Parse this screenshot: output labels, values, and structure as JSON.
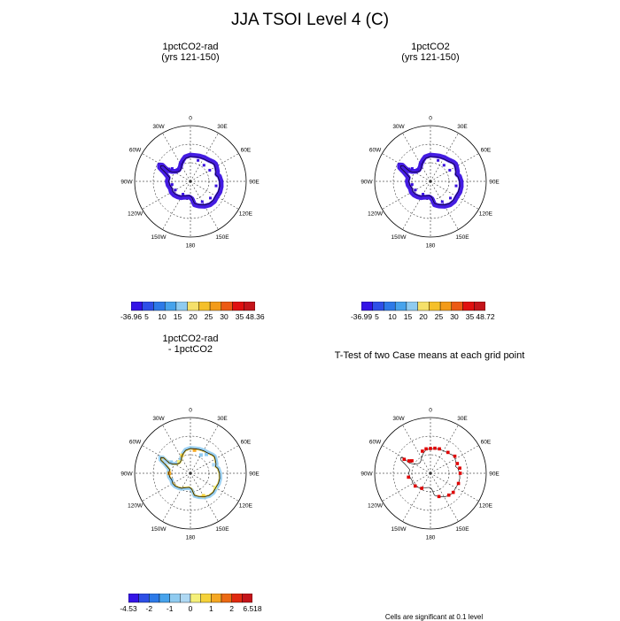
{
  "title": "JJA TSOI Level 4 (C)",
  "panels": [
    {
      "title": "1pctCO2-rad",
      "subtitle": "(yrs 121-150)",
      "labelbar": {
        "labels": [
          "-36.96",
          "5",
          "10",
          "15",
          "20",
          "25",
          "30",
          "35",
          "48.36"
        ]
      }
    },
    {
      "title": "1pctCO2",
      "subtitle": "(yrs 121-150)",
      "labelbar": {
        "labels": [
          "-36.99",
          "5",
          "10",
          "15",
          "20",
          "25",
          "30",
          "35",
          "48.72"
        ]
      }
    },
    {
      "title": "1pctCO2-rad",
      "subtitle": "- 1pctCO2",
      "labelbar": {
        "labels": [
          "-4.53",
          "-2",
          "-1",
          "0",
          "1",
          "2",
          "6.518"
        ]
      }
    },
    {
      "title": "T-Test of two Case means at each grid point",
      "subtitle": ""
    }
  ],
  "lon_labels": [
    "0",
    "30E",
    "60E",
    "90E",
    "120E",
    "150E",
    "180",
    "150W",
    "120W",
    "90W",
    "60W",
    "30W"
  ],
  "colors": {
    "abs_field": "#3a10e0",
    "ttest_sig": "#e00000",
    "abs_scale": [
      "#3414e6",
      "#2e4fe8",
      "#2d7ae8",
      "#47a3ec",
      "#8fcbf0",
      "#f5e06a",
      "#f5c02a",
      "#f39b1a",
      "#ec5a14",
      "#e01010",
      "#c4141a"
    ],
    "diff_scale": [
      "#3414e6",
      "#2d4fe6",
      "#2d7ae8",
      "#47a3ec",
      "#8fcbf0",
      "#aed8f3",
      "#f5f07a",
      "#f5d23a",
      "#f5a723",
      "#ec6a14",
      "#e02a10",
      "#c4141a"
    ]
  },
  "footnote": "Cells are significant at 0.1 level"
}
